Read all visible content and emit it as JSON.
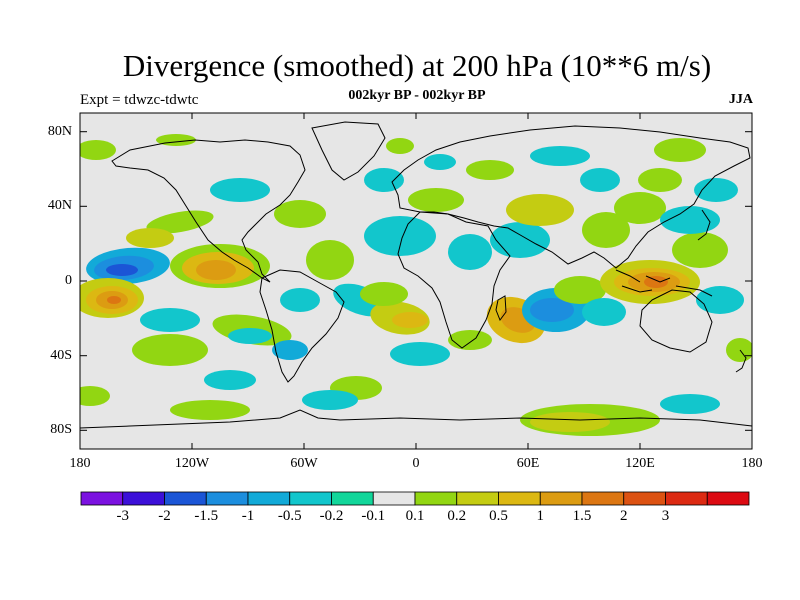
{
  "header": {
    "title": "Divergence (smoothed) at 200 hPa (10**6 m/s)",
    "subtitle": "002kyr BP - 002kyr BP",
    "experiment": "Expt = tdwzc-tdwtc",
    "season": "JJA"
  },
  "map_axes": {
    "lat_labels": [
      "80N",
      "40N",
      "0",
      "40S",
      "80S"
    ],
    "lon_labels": [
      "180",
      "120W",
      "60W",
      "0",
      "60E",
      "120E",
      "180"
    ]
  },
  "colorbar": {
    "colors": [
      "#7b12e0",
      "#3c10d8",
      "#1b55d6",
      "#1c8ede",
      "#12aad8",
      "#12c6cc",
      "#12d69a",
      "#e6e6e6",
      "#92d612",
      "#c4cc12",
      "#dcb812",
      "#dc9c12",
      "#dc7612",
      "#dc5212",
      "#dc2a12",
      "#dc0a12"
    ],
    "labels": [
      "-3",
      "-2",
      "-1.5",
      "-1",
      "-0.5",
      "-0.2",
      "-0.1",
      "0.1",
      "0.2",
      "0.5",
      "1",
      "1.5",
      "2",
      "3"
    ]
  },
  "chart_data": {
    "type": "heatmap",
    "map_projection": "cylindrical-equidistant",
    "lon_range": [
      -180,
      180
    ],
    "lat_range": [
      -90,
      90
    ],
    "contour_levels": [
      -3,
      -2,
      -1.5,
      -1,
      -0.5,
      -0.2,
      -0.1,
      0.1,
      0.2,
      0.5,
      1,
      1.5,
      2,
      3
    ],
    "features": [
      {
        "region": "central Pacific 10N",
        "lon": -170,
        "lat": 8,
        "level": "-2"
      },
      {
        "region": "central Pacific 15S",
        "lon": -168,
        "lat": -10,
        "level": "2"
      },
      {
        "region": "eastern Pacific 5N",
        "lon": -108,
        "lat": 6,
        "level": "1.5"
      },
      {
        "region": "Atlantic 20S",
        "lon": -18,
        "lat": -22,
        "level": "0.5"
      },
      {
        "region": "southern Africa",
        "lon": 45,
        "lat": -18,
        "level": "1"
      },
      {
        "region": "Indian Ocean 10S",
        "lon": 65,
        "lat": -8,
        "level": "-1"
      },
      {
        "region": "Maritime Continent",
        "lon": 125,
        "lat": 0,
        "level": "2"
      },
      {
        "region": "western Pacific 20N",
        "lon": 140,
        "lat": 20,
        "level": "-0.5"
      },
      {
        "region": "Southern Ocean 60S",
        "lon": 90,
        "lat": -60,
        "level": "0.5"
      }
    ]
  }
}
